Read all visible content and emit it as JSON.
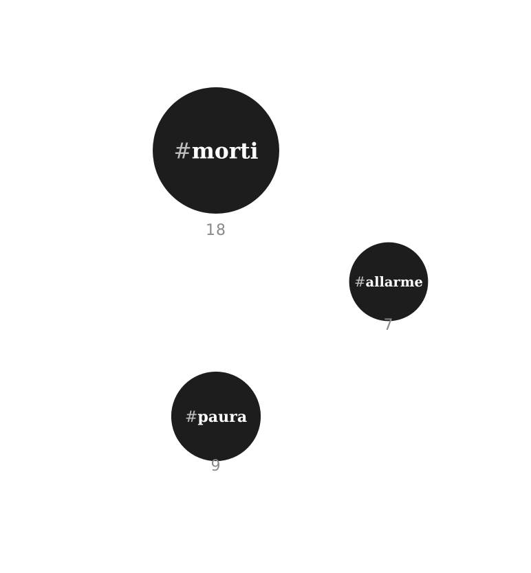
{
  "chart_data": {
    "type": "bubble",
    "title": "",
    "items": [
      {
        "hash": "#",
        "label": "morti",
        "value": 18
      },
      {
        "hash": "#",
        "label": "allarme",
        "value": 7
      },
      {
        "hash": "#",
        "label": "paura",
        "value": 9
      }
    ]
  },
  "colors": {
    "bubble_fill": "#1d1d1d",
    "label_text": "#ffffff",
    "hash_text": "#bdbdbd",
    "count_text": "#8a8a8a",
    "background": "#ffffff"
  }
}
